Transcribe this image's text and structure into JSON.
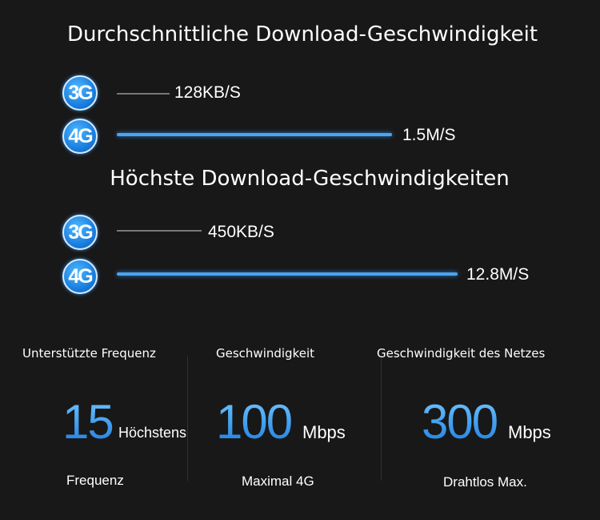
{
  "average": {
    "title": "Durchschnittliche Download-Geschwindigkeit",
    "rows": [
      {
        "badge": "3G",
        "value": "128KB/S"
      },
      {
        "badge": "4G",
        "value": "1.5M/S"
      }
    ]
  },
  "maximum": {
    "title": "Höchste Download-Geschwindigkeiten",
    "rows": [
      {
        "badge": "3G",
        "value": "450KB/S"
      },
      {
        "badge": "4G",
        "value": "12.8M/S"
      }
    ]
  },
  "stats": [
    {
      "heading": "Unterstützte Frequenz",
      "number": "15",
      "unit": "Höchstens",
      "caption": "Frequenz"
    },
    {
      "heading": "Geschwindigkeit",
      "number": "100",
      "unit": "Mbps",
      "caption": "Maximal 4G"
    },
    {
      "heading": "Geschwindigkeit des Netzes",
      "number": "300",
      "unit": "Mbps",
      "caption": "Drahtlos Max."
    }
  ],
  "colors": {
    "accent": "#3d9ff0",
    "background": "#181818"
  }
}
